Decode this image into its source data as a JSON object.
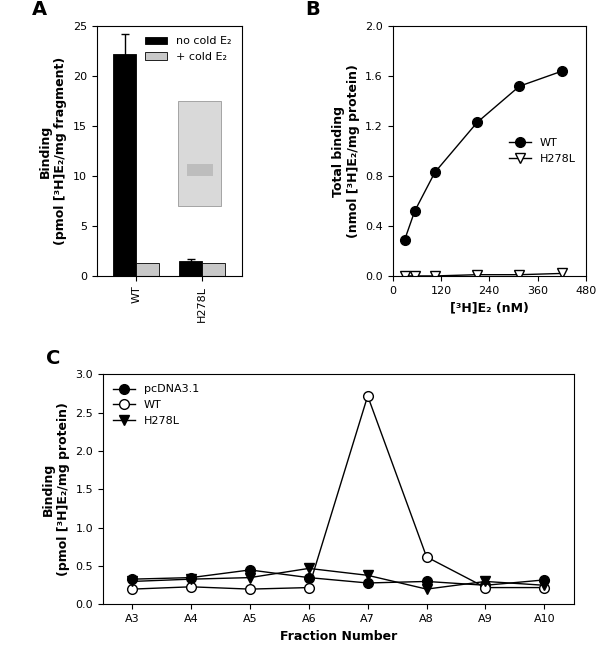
{
  "chart_data": [
    {
      "type": "bar",
      "title": "A",
      "y_label": "Binding\n(pmol [³H]E₂/mg fragment)",
      "categories": [
        "WT",
        "H278L"
      ],
      "series": [
        {
          "name": "no cold E₂",
          "color": "#000000",
          "values": [
            22.2,
            1.5
          ],
          "errors": [
            2.0,
            0.2
          ]
        },
        {
          "name": "+ cold E₂",
          "color": "#c8c8c8",
          "values": [
            1.3,
            1.3
          ]
        }
      ],
      "ylim": [
        0,
        25
      ],
      "yticks": [
        0,
        5,
        10,
        15,
        20,
        25
      ],
      "legend": "upper right"
    },
    {
      "type": "line",
      "title": "B",
      "x_label": "[³H]E₂ (nM)",
      "y_label": "Total binding\n(nmol [³H]E₂/mg protein)",
      "x": [
        30,
        55,
        105,
        210,
        315,
        420
      ],
      "series": [
        {
          "name": "WT",
          "color": "#000000",
          "marker": "circle",
          "values": [
            0.29,
            0.52,
            0.83,
            1.23,
            1.52,
            1.64
          ]
        },
        {
          "name": "H278L",
          "color": "#000000",
          "marker": "triangle_down_open",
          "values": [
            0.0,
            0.0,
            0.0,
            0.01,
            0.01,
            0.02
          ]
        }
      ],
      "xlim": [
        0,
        480
      ],
      "xticks": [
        0,
        120,
        240,
        360,
        480
      ],
      "ylim": [
        0.0,
        2.0
      ],
      "yticks": [
        0.0,
        0.4,
        0.8,
        1.2,
        1.6,
        2.0
      ],
      "legend": "center right"
    },
    {
      "type": "line",
      "title": "C",
      "x_label": "Fraction Number",
      "y_label": "Binding\n(pmol [³H]E₂/mg protein)",
      "categories": [
        "A3",
        "A4",
        "A5",
        "A6",
        "A7",
        "A8",
        "A9",
        "A10"
      ],
      "series": [
        {
          "name": "pcDNA3.1",
          "color": "#000000",
          "marker": "circle",
          "values": [
            0.33,
            0.35,
            0.45,
            0.35,
            0.28,
            0.3,
            0.25,
            0.32
          ]
        },
        {
          "name": "WT",
          "color": "#000000",
          "marker": "circle_open",
          "values": [
            0.2,
            0.23,
            0.2,
            0.22,
            2.72,
            0.62,
            0.22,
            0.22
          ]
        },
        {
          "name": "H278L",
          "color": "#000000",
          "marker": "triangle_down",
          "values": [
            0.3,
            0.33,
            0.35,
            0.47,
            0.38,
            0.2,
            0.3,
            0.25
          ]
        }
      ],
      "ylim": [
        0.0,
        3.0
      ],
      "yticks": [
        0.0,
        0.5,
        1.0,
        1.5,
        2.0,
        2.5,
        3.0
      ],
      "legend": "upper left"
    }
  ]
}
